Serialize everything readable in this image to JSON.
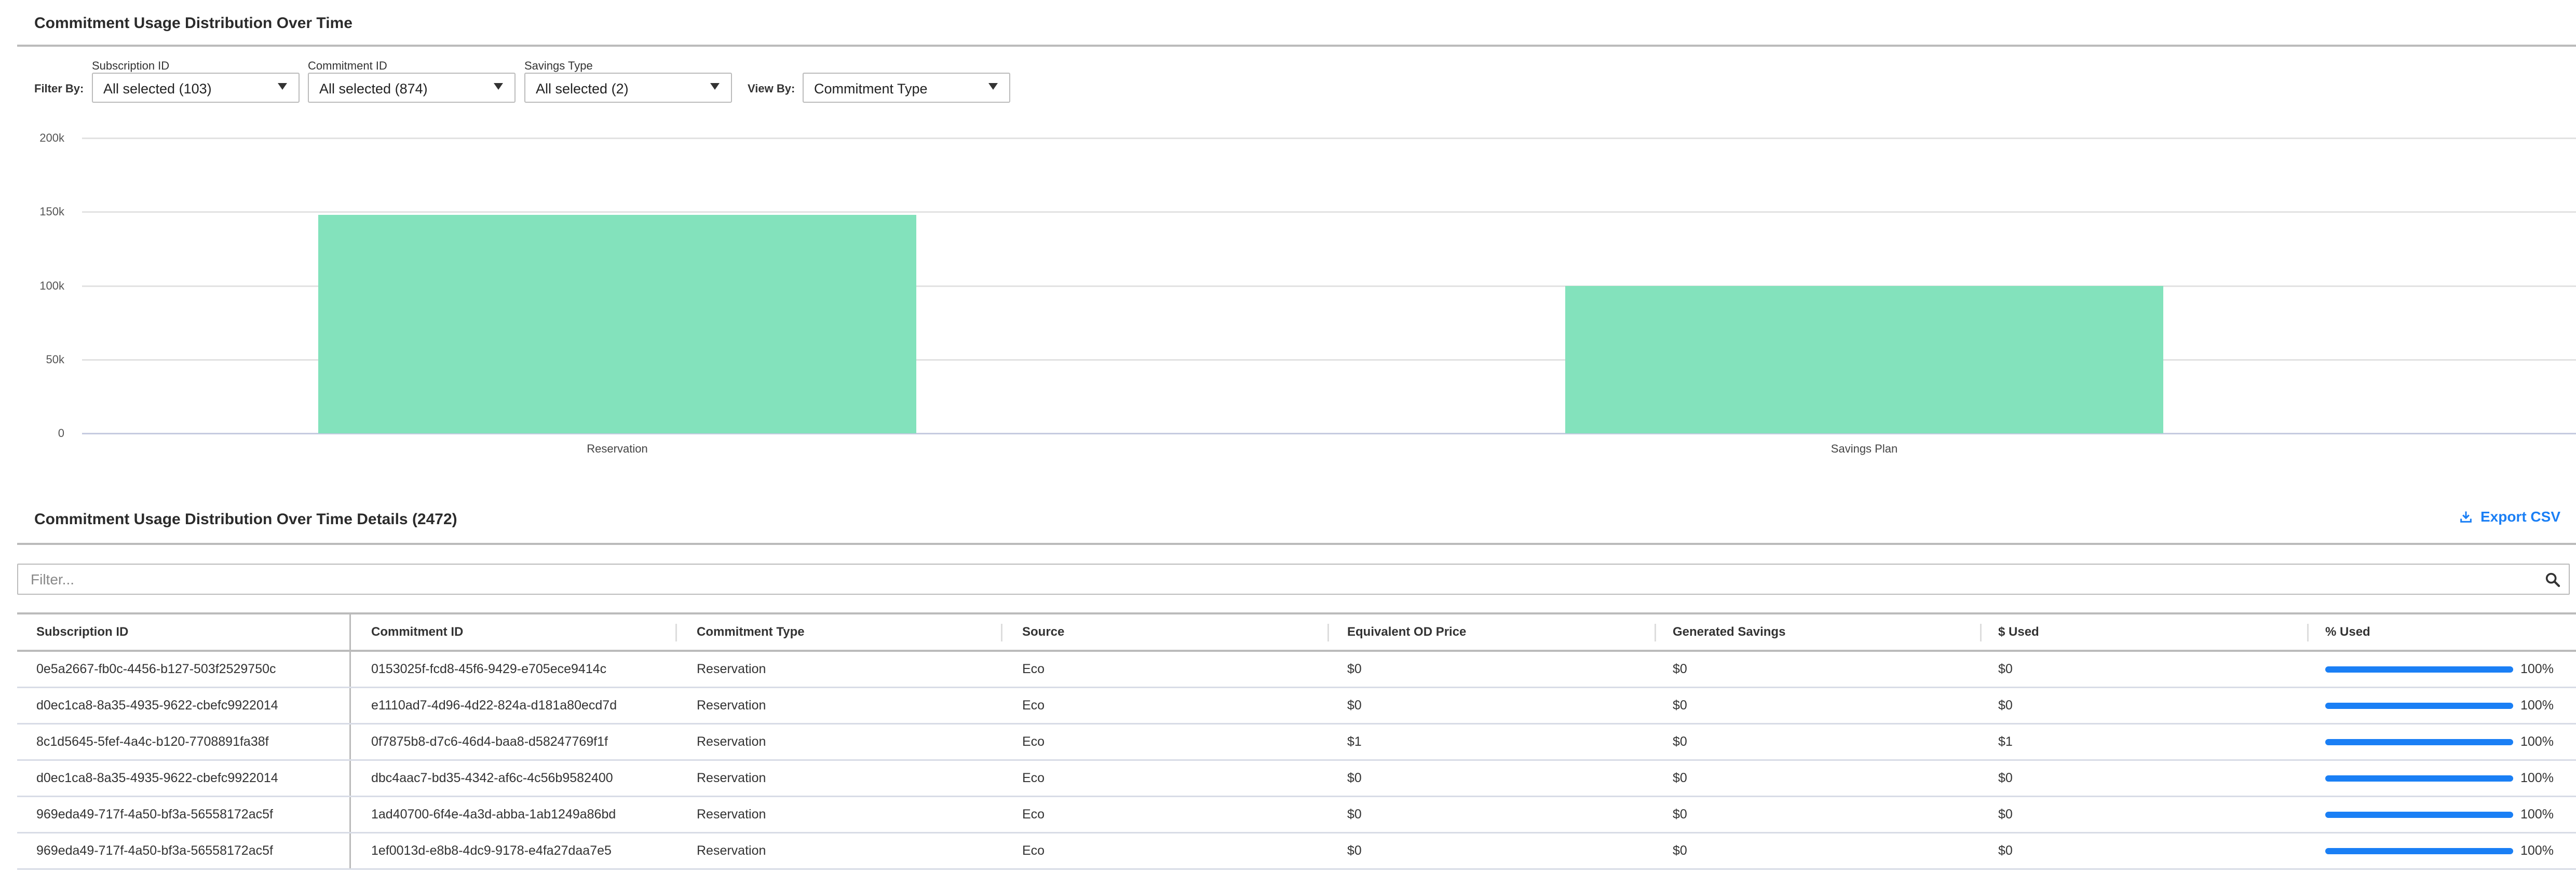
{
  "chart_section": {
    "title": "Commitment Usage Distribution Over Time",
    "filter_by_label": "Filter By:",
    "view_by_label": "View By:",
    "filters": [
      {
        "label": "Subscription ID",
        "value": "All selected (103)"
      },
      {
        "label": "Commitment ID",
        "value": "All selected (874)"
      },
      {
        "label": "Savings Type",
        "value": "All selected (2)"
      }
    ],
    "view_by": {
      "value": "Commitment Type"
    }
  },
  "chart_data": {
    "type": "bar",
    "categories": [
      "Reservation",
      "Savings Plan"
    ],
    "values": [
      148000,
      100000
    ],
    "ylim": [
      0,
      200000
    ],
    "yticks": [
      "0",
      "50k",
      "100k",
      "150k",
      "200k"
    ],
    "ytick_values": [
      0,
      50000,
      100000,
      150000,
      200000
    ],
    "grid": true,
    "bar_color": "#83e2bc",
    "title": "",
    "xlabel": "",
    "ylabel": ""
  },
  "details": {
    "title": "Commitment Usage Distribution Over Time Details (2472)",
    "export_label": "Export CSV",
    "export_icon": "download-icon",
    "filter_placeholder": "Filter...",
    "search_icon": "search-icon",
    "accent_color": "#1a7ff5",
    "columns": [
      "Subscription ID",
      "Commitment ID",
      "Commitment Type",
      "Source",
      "Equivalent OD Price",
      "Generated Savings",
      "$ Used",
      "% Used"
    ],
    "rows": [
      {
        "subscription_id": "0e5a2667-fb0c-4456-b127-503f2529750c",
        "commitment_id": "0153025f-fcd8-45f6-9429-e705ece9414c",
        "type": "Reservation",
        "source": "Eco",
        "od_price": "$0",
        "savings": "$0",
        "used": "$0",
        "pct_used": "100%",
        "pct_value": 100
      },
      {
        "subscription_id": "d0ec1ca8-8a35-4935-9622-cbefc9922014",
        "commitment_id": "e1110ad7-4d96-4d22-824a-d181a80ecd7d",
        "type": "Reservation",
        "source": "Eco",
        "od_price": "$0",
        "savings": "$0",
        "used": "$0",
        "pct_used": "100%",
        "pct_value": 100
      },
      {
        "subscription_id": "8c1d5645-5fef-4a4c-b120-7708891fa38f",
        "commitment_id": "0f7875b8-d7c6-46d4-baa8-d58247769f1f",
        "type": "Reservation",
        "source": "Eco",
        "od_price": "$1",
        "savings": "$0",
        "used": "$1",
        "pct_used": "100%",
        "pct_value": 100
      },
      {
        "subscription_id": "d0ec1ca8-8a35-4935-9622-cbefc9922014",
        "commitment_id": "dbc4aac7-bd35-4342-af6c-4c56b9582400",
        "type": "Reservation",
        "source": "Eco",
        "od_price": "$0",
        "savings": "$0",
        "used": "$0",
        "pct_used": "100%",
        "pct_value": 100
      },
      {
        "subscription_id": "969eda49-717f-4a50-bf3a-56558172ac5f",
        "commitment_id": "1ad40700-6f4e-4a3d-abba-1ab1249a86bd",
        "type": "Reservation",
        "source": "Eco",
        "od_price": "$0",
        "savings": "$0",
        "used": "$0",
        "pct_used": "100%",
        "pct_value": 100
      },
      {
        "subscription_id": "969eda49-717f-4a50-bf3a-56558172ac5f",
        "commitment_id": "1ef0013d-e8b8-4dc9-9178-e4fa27daa7e5",
        "type": "Reservation",
        "source": "Eco",
        "od_price": "$0",
        "savings": "$0",
        "used": "$0",
        "pct_used": "100%",
        "pct_value": 100
      }
    ]
  }
}
